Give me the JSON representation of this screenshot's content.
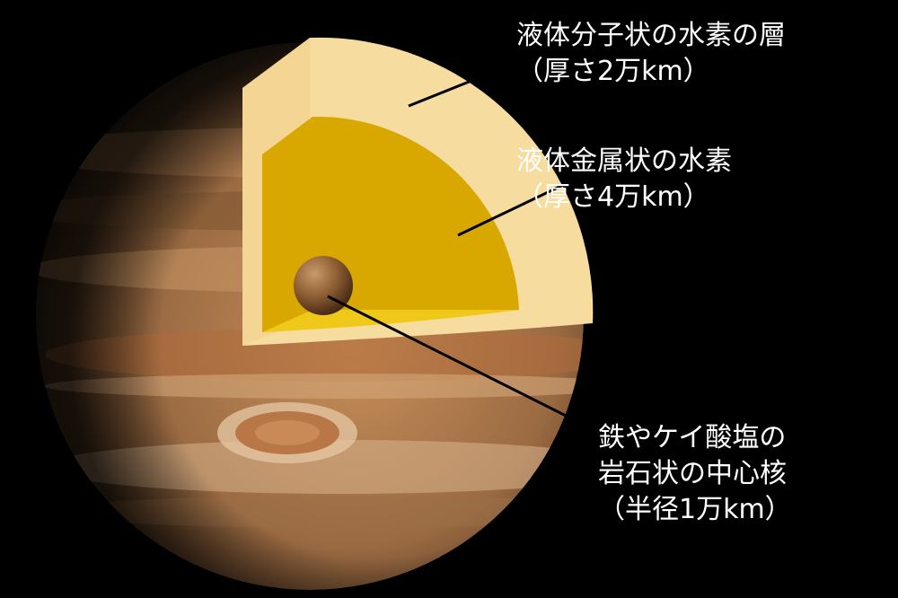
{
  "labels": {
    "outer_layer": {
      "line1": "液体分子状の水素の層",
      "line2": "（厚さ2万km）"
    },
    "metallic_layer": {
      "line1": "液体金属状の水素",
      "line2": "（厚さ4万km）"
    },
    "core": {
      "line1": "鉄やケイ酸塩の",
      "line2": "岩石状の中心核",
      "line3": "（半径1万km）"
    }
  },
  "colors": {
    "background": "#000000",
    "outer_layer": "#f7dca0",
    "metallic_layer": "#d9a800",
    "core": "#8a5a30",
    "leader_line": "#000000",
    "label_text": "#ffffff"
  }
}
